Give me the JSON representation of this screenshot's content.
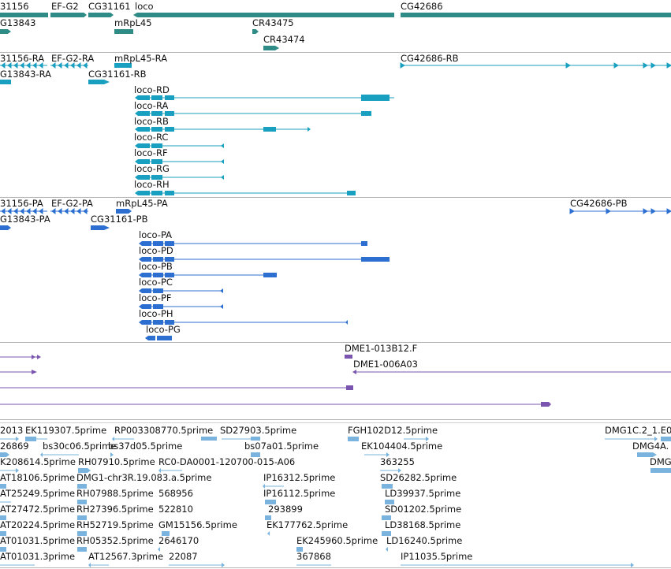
{
  "colors": {
    "gene": "#2e8b86",
    "transcript": "#19a0c0",
    "protein": "#2c6fd0",
    "clone": "#7a55b0",
    "est": "#7ab4de"
  },
  "tracks": {
    "genes": {
      "labels": [
        "31156",
        "EF-G2",
        "CG31161",
        "loco",
        "CG42686",
        "G13843",
        "mRpL45",
        "CR43475",
        "CR43474"
      ]
    },
    "transcripts": {
      "labels": [
        "31156-RA",
        "EF-G2-RA",
        "mRpL45-RA",
        "CG42686-RB",
        "G13843-RA",
        "CG31161-RB",
        "loco-RD",
        "loco-RA",
        "loco-RB",
        "loco-RC",
        "loco-RF",
        "loco-RG",
        "loco-RH"
      ]
    },
    "proteins": {
      "labels": [
        "31156-PA",
        "EF-G2-PA",
        "mRpL45-PA",
        "CG42686-PB",
        "G13843-PA",
        "CG31161-PB",
        "loco-PA",
        "loco-PD",
        "loco-PB",
        "loco-PC",
        "loco-PF",
        "loco-PH",
        "loco-PG"
      ]
    },
    "clones": {
      "labels": [
        "DME1-013B12.F",
        "DME1-006A03"
      ]
    },
    "ests": {
      "labels": [
        "2013",
        "EK119307.5prime",
        "RP003308770.5prime",
        "SD27903.5prime",
        "FGH102D12.5prime",
        "DMG1C.2_1.E0",
        "26869",
        "bs30c06.5prime",
        "bs37d05.5prime",
        "bs07a01.5prime",
        "EK104404.5prime",
        "DMG4A.",
        "K208614.5prime",
        "RH07910.5prime",
        "RC0-DA0001-120700-015-A06",
        "363255",
        "DMG",
        "AT18106.5prime",
        "DMG1-chr3R.19.083.a.5prime",
        "IP16312.5prime",
        "SD26282.5prime",
        "AT25249.5prime",
        "RH07988.5prime",
        "568956",
        "IP16112.5prime",
        "LD39937.5prime",
        "AT27472.5prime",
        "RH27396.5prime",
        "522810",
        "293899",
        "SD01202.5prime",
        "AT20224.5prime",
        "RH52719.5prime",
        "GM15156.5prime",
        "EK177762.5prime",
        "LD38168.5prime",
        "AT01031.5prime",
        "RH05352.5prime",
        "2646170",
        "EK245960.5prime",
        "LD16240.5prime",
        "AT01031.3prime",
        "AT12567.3prime",
        "22087",
        "367868",
        "IP11035.5prime"
      ]
    }
  }
}
